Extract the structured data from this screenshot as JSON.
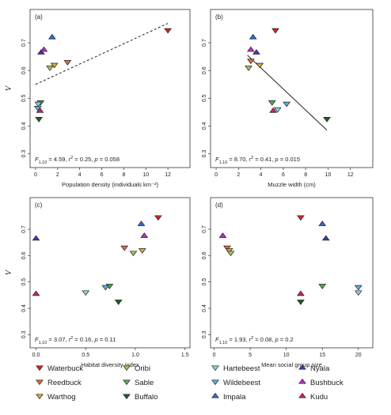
{
  "colors": {
    "Waterbuck": "#d3222f",
    "Reedbuck": "#e06a3e",
    "Warthog": "#e6a531",
    "Oribi": "#a3c25a",
    "Sable": "#4faf4f",
    "Buffalo": "#1f5e2a",
    "Hartebeest": "#86d3d8",
    "Wildebeest": "#5aaee6",
    "Impala": "#2b6fd6",
    "Nyala": "#4338b8",
    "Bushbuck": "#b42fc8",
    "Kudu": "#d0215e"
  },
  "legend": [
    {
      "label": "Waterbuck",
      "shape": "down"
    },
    {
      "label": "Reedbuck",
      "shape": "down"
    },
    {
      "label": "Warthog",
      "shape": "down"
    },
    {
      "label": "Oribi",
      "shape": "down"
    },
    {
      "label": "Sable",
      "shape": "down"
    },
    {
      "label": "Buffalo",
      "shape": "down"
    },
    {
      "label": "Hartebeest",
      "shape": "down"
    },
    {
      "label": "Wildebeest",
      "shape": "down"
    },
    {
      "label": "Impala",
      "shape": "up"
    },
    {
      "label": "Nyala",
      "shape": "up"
    },
    {
      "label": "Bushbuck",
      "shape": "up"
    },
    {
      "label": "Kudu",
      "shape": "up"
    }
  ],
  "chart_data": [
    {
      "type": "scatter",
      "panel_label": "(a)",
      "xlabel": "Population density (individuals km⁻²)",
      "ylabel": "V",
      "xlim": [
        -0.5,
        14
      ],
      "ylim": [
        0.25,
        0.82
      ],
      "xticks": [
        0,
        2,
        4,
        6,
        8,
        10,
        12
      ],
      "yticks": [
        0.3,
        0.4,
        0.5,
        0.6,
        0.7
      ],
      "stat_parts": [
        "F",
        "1,10",
        " = 4.59, ",
        "r",
        "2",
        " = 0.25, ",
        "p",
        " = 0.058"
      ],
      "trend": {
        "style": "dashed",
        "x": [
          0,
          12
        ],
        "y": [
          0.55,
          0.77
        ]
      },
      "points": [
        {
          "species": "Waterbuck",
          "x": 12.0,
          "y": 0.745
        },
        {
          "species": "Reedbuck",
          "x": 2.9,
          "y": 0.63
        },
        {
          "species": "Warthog",
          "x": 1.7,
          "y": 0.62
        },
        {
          "species": "Oribi",
          "x": 1.3,
          "y": 0.61
        },
        {
          "species": "Sable",
          "x": 0.45,
          "y": 0.485
        },
        {
          "species": "Buffalo",
          "x": 0.3,
          "y": 0.425
        },
        {
          "species": "Hartebeest",
          "x": 0.25,
          "y": 0.48
        },
        {
          "species": "Wildebeest",
          "x": 0.2,
          "y": 0.465
        },
        {
          "species": "Impala",
          "x": 1.5,
          "y": 0.72
        },
        {
          "species": "Nyala",
          "x": 0.5,
          "y": 0.665
        },
        {
          "species": "Bushbuck",
          "x": 0.75,
          "y": 0.675
        },
        {
          "species": "Kudu",
          "x": 0.4,
          "y": 0.455
        }
      ]
    },
    {
      "type": "scatter",
      "panel_label": "(b)",
      "xlabel": "Muzzle width (cm)",
      "ylabel": "",
      "xlim": [
        -0.5,
        14
      ],
      "ylim": [
        0.25,
        0.82
      ],
      "xticks": [
        0,
        2,
        4,
        6,
        8,
        10,
        12
      ],
      "yticks": [
        0.3,
        0.4,
        0.5,
        0.6,
        0.7
      ],
      "stat_parts": [
        "F",
        "1,10",
        " = 8.70, ",
        "r",
        "2",
        " = 0.41, ",
        "p",
        " = 0.015"
      ],
      "trend": {
        "style": "solid",
        "x": [
          2.8,
          9.9
        ],
        "y": [
          0.655,
          0.385
        ]
      },
      "points": [
        {
          "species": "Waterbuck",
          "x": 5.3,
          "y": 0.745
        },
        {
          "species": "Reedbuck",
          "x": 3.1,
          "y": 0.635
        },
        {
          "species": "Warthog",
          "x": 3.9,
          "y": 0.62
        },
        {
          "species": "Oribi",
          "x": 2.9,
          "y": 0.61
        },
        {
          "species": "Sable",
          "x": 5.0,
          "y": 0.485
        },
        {
          "species": "Buffalo",
          "x": 9.9,
          "y": 0.425
        },
        {
          "species": "Hartebeest",
          "x": 5.5,
          "y": 0.46
        },
        {
          "species": "Wildebeest",
          "x": 6.3,
          "y": 0.48
        },
        {
          "species": "Impala",
          "x": 3.3,
          "y": 0.72
        },
        {
          "species": "Nyala",
          "x": 3.6,
          "y": 0.665
        },
        {
          "species": "Bushbuck",
          "x": 3.1,
          "y": 0.675
        },
        {
          "species": "Kudu",
          "x": 5.1,
          "y": 0.455
        }
      ]
    },
    {
      "type": "scatter",
      "panel_label": "(c)",
      "xlabel": "Habitat diversity index",
      "ylabel": "V",
      "xlim": [
        -0.06,
        1.55
      ],
      "ylim": [
        0.25,
        0.82
      ],
      "xticks": [
        0.0,
        0.5,
        1.0,
        1.5
      ],
      "yticks": [
        0.3,
        0.4,
        0.5,
        0.6,
        0.7
      ],
      "stat_parts": [
        "F",
        "1,10",
        " = 3.07, ",
        "r",
        "2",
        " = 0.16, ",
        "p",
        " = 0.11"
      ],
      "trend": null,
      "points": [
        {
          "species": "Waterbuck",
          "x": 1.23,
          "y": 0.745
        },
        {
          "species": "Reedbuck",
          "x": 0.89,
          "y": 0.63
        },
        {
          "species": "Warthog",
          "x": 1.07,
          "y": 0.62
        },
        {
          "species": "Oribi",
          "x": 0.98,
          "y": 0.61
        },
        {
          "species": "Sable",
          "x": 0.74,
          "y": 0.485
        },
        {
          "species": "Buffalo",
          "x": 0.83,
          "y": 0.425
        },
        {
          "species": "Hartebeest",
          "x": 0.5,
          "y": 0.46
        },
        {
          "species": "Wildebeest",
          "x": 0.7,
          "y": 0.48
        },
        {
          "species": "Impala",
          "x": 1.06,
          "y": 0.72
        },
        {
          "species": "Nyala",
          "x": 0.0,
          "y": 0.665
        },
        {
          "species": "Bushbuck",
          "x": 1.09,
          "y": 0.675
        },
        {
          "species": "Kudu",
          "x": 0.0,
          "y": 0.455
        }
      ]
    },
    {
      "type": "scatter",
      "panel_label": "(d)",
      "xlabel": "Mean social group size",
      "ylabel": "",
      "xlim": [
        -0.5,
        22
      ],
      "ylim": [
        0.25,
        0.82
      ],
      "xticks": [
        0,
        5,
        10,
        15,
        20
      ],
      "yticks": [
        0.3,
        0.4,
        0.5,
        0.6,
        0.7
      ],
      "stat_parts": [
        "F",
        "1,10",
        " = 1.93, ",
        "r",
        "2",
        " = 0.08, ",
        "p",
        " = 0.2"
      ],
      "trend": null,
      "points": [
        {
          "species": "Waterbuck",
          "x": 12.0,
          "y": 0.745
        },
        {
          "species": "Reedbuck",
          "x": 1.8,
          "y": 0.63
        },
        {
          "species": "Warthog",
          "x": 2.1,
          "y": 0.62
        },
        {
          "species": "Oribi",
          "x": 2.3,
          "y": 0.61
        },
        {
          "species": "Sable",
          "x": 15.0,
          "y": 0.485
        },
        {
          "species": "Buffalo",
          "x": 12.0,
          "y": 0.425
        },
        {
          "species": "Hartebeest",
          "x": 20.0,
          "y": 0.46
        },
        {
          "species": "Wildebeest",
          "x": 20.0,
          "y": 0.48
        },
        {
          "species": "Impala",
          "x": 15.0,
          "y": 0.72
        },
        {
          "species": "Nyala",
          "x": 15.5,
          "y": 0.665
        },
        {
          "species": "Bushbuck",
          "x": 1.2,
          "y": 0.675
        },
        {
          "species": "Kudu",
          "x": 12.0,
          "y": 0.455
        }
      ]
    }
  ]
}
